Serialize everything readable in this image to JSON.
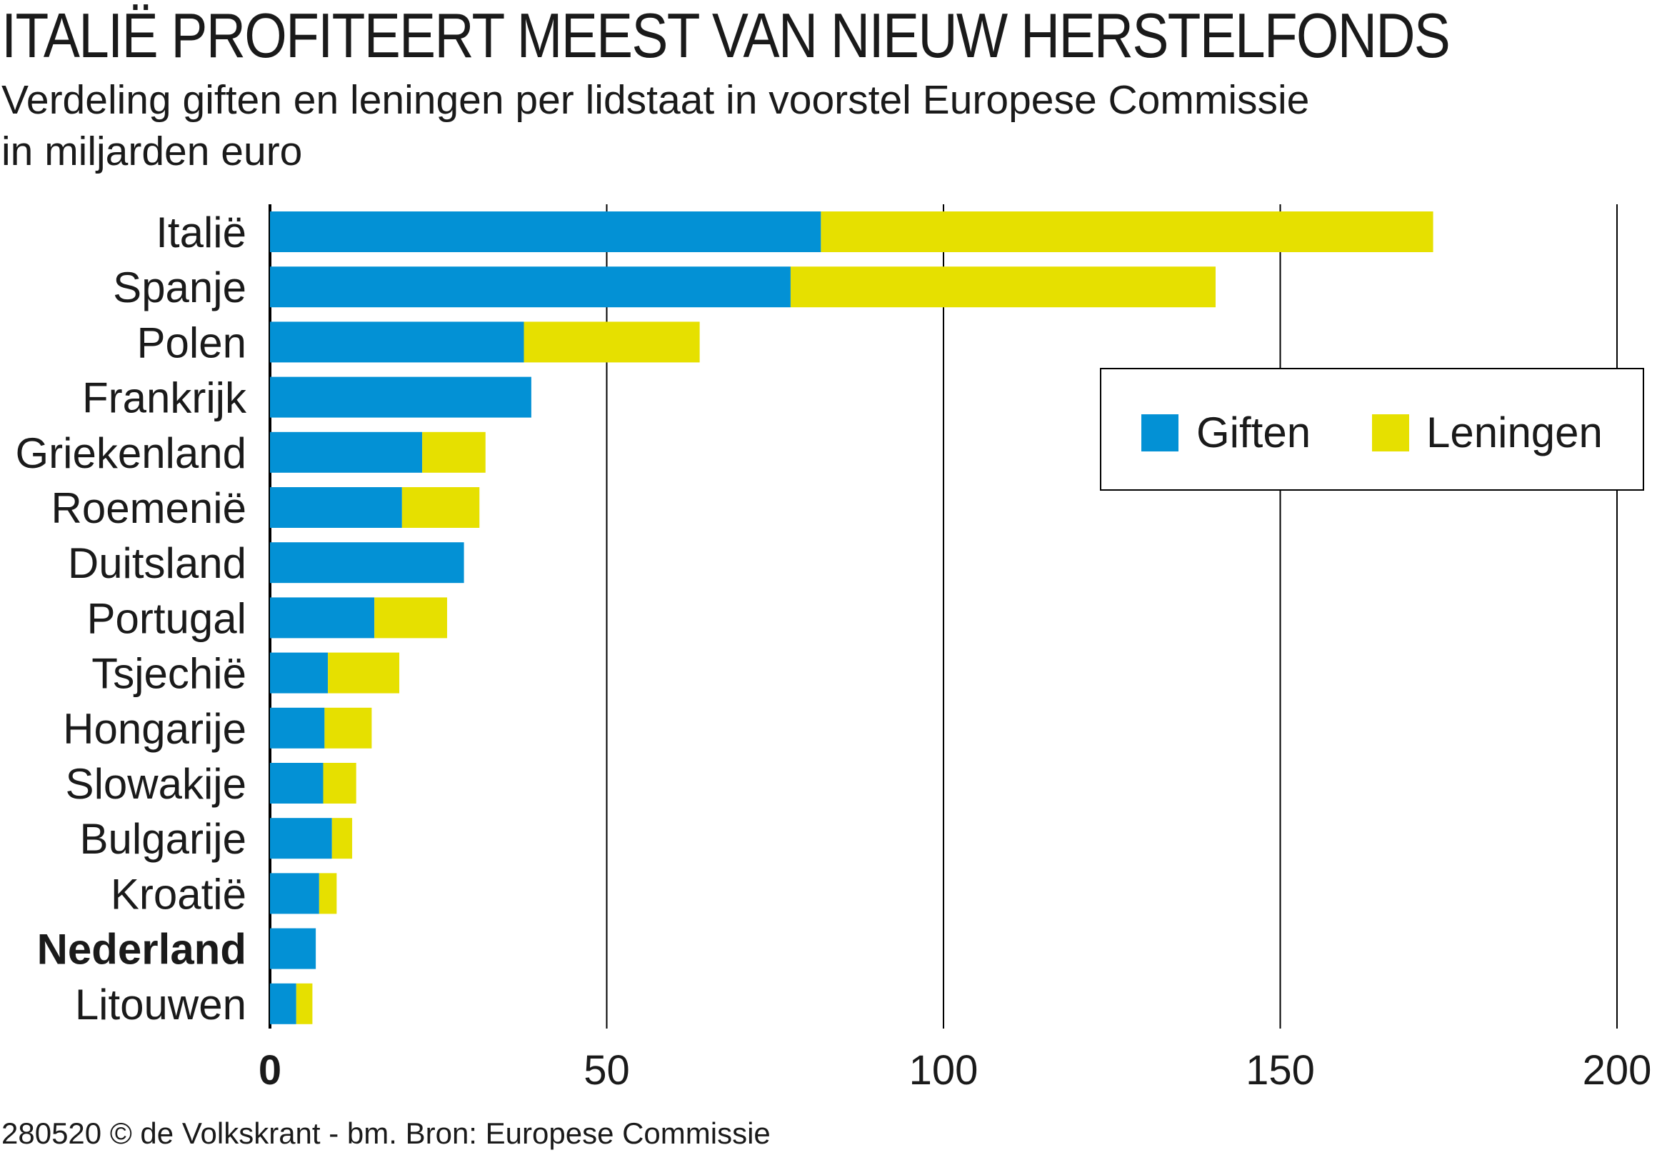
{
  "title": "ITALIË PROFITEERT MEEST VAN NIEUW HERSTELFONDS",
  "subtitle_line1": "Verdeling giften en leningen per lidstaat in voorstel Europese Commissie",
  "subtitle_line2": "in miljarden euro",
  "footer": "280520 © de Volkskrant - bm. Bron: Europese Commissie",
  "colors": {
    "giften": "#0391D5",
    "leningen": "#E6E000",
    "axis": "#000000"
  },
  "chart_data": {
    "type": "bar",
    "orientation": "horizontal",
    "stacked": true,
    "categories": [
      "Italië",
      "Spanje",
      "Polen",
      "Frankrijk",
      "Griekenland",
      "Roemenië",
      "Duitsland",
      "Portugal",
      "Tsjechië",
      "Hongarije",
      "Slowakije",
      "Bulgarije",
      "Kroatië",
      "Nederland",
      "Litouwen"
    ],
    "highlight": "Nederland",
    "series": [
      {
        "name": "Giften",
        "values": [
          81.8,
          77.3,
          37.7,
          38.8,
          22.6,
          19.6,
          28.8,
          15.5,
          8.6,
          8.1,
          7.9,
          9.2,
          7.3,
          6.8,
          3.9
        ]
      },
      {
        "name": "Leningen",
        "values": [
          90.9,
          63.1,
          26.1,
          0,
          9.4,
          11.5,
          0,
          10.8,
          10.6,
          7.0,
          4.9,
          3.0,
          2.6,
          0,
          2.4
        ]
      }
    ],
    "xlim": [
      0,
      200
    ],
    "xticks": [
      "0",
      "50",
      "100",
      "150",
      "200"
    ],
    "xtick_values": [
      0,
      50,
      100,
      150,
      200
    ],
    "grid": true,
    "legend_position": "top-right",
    "xlabel": "",
    "ylabel": ""
  }
}
